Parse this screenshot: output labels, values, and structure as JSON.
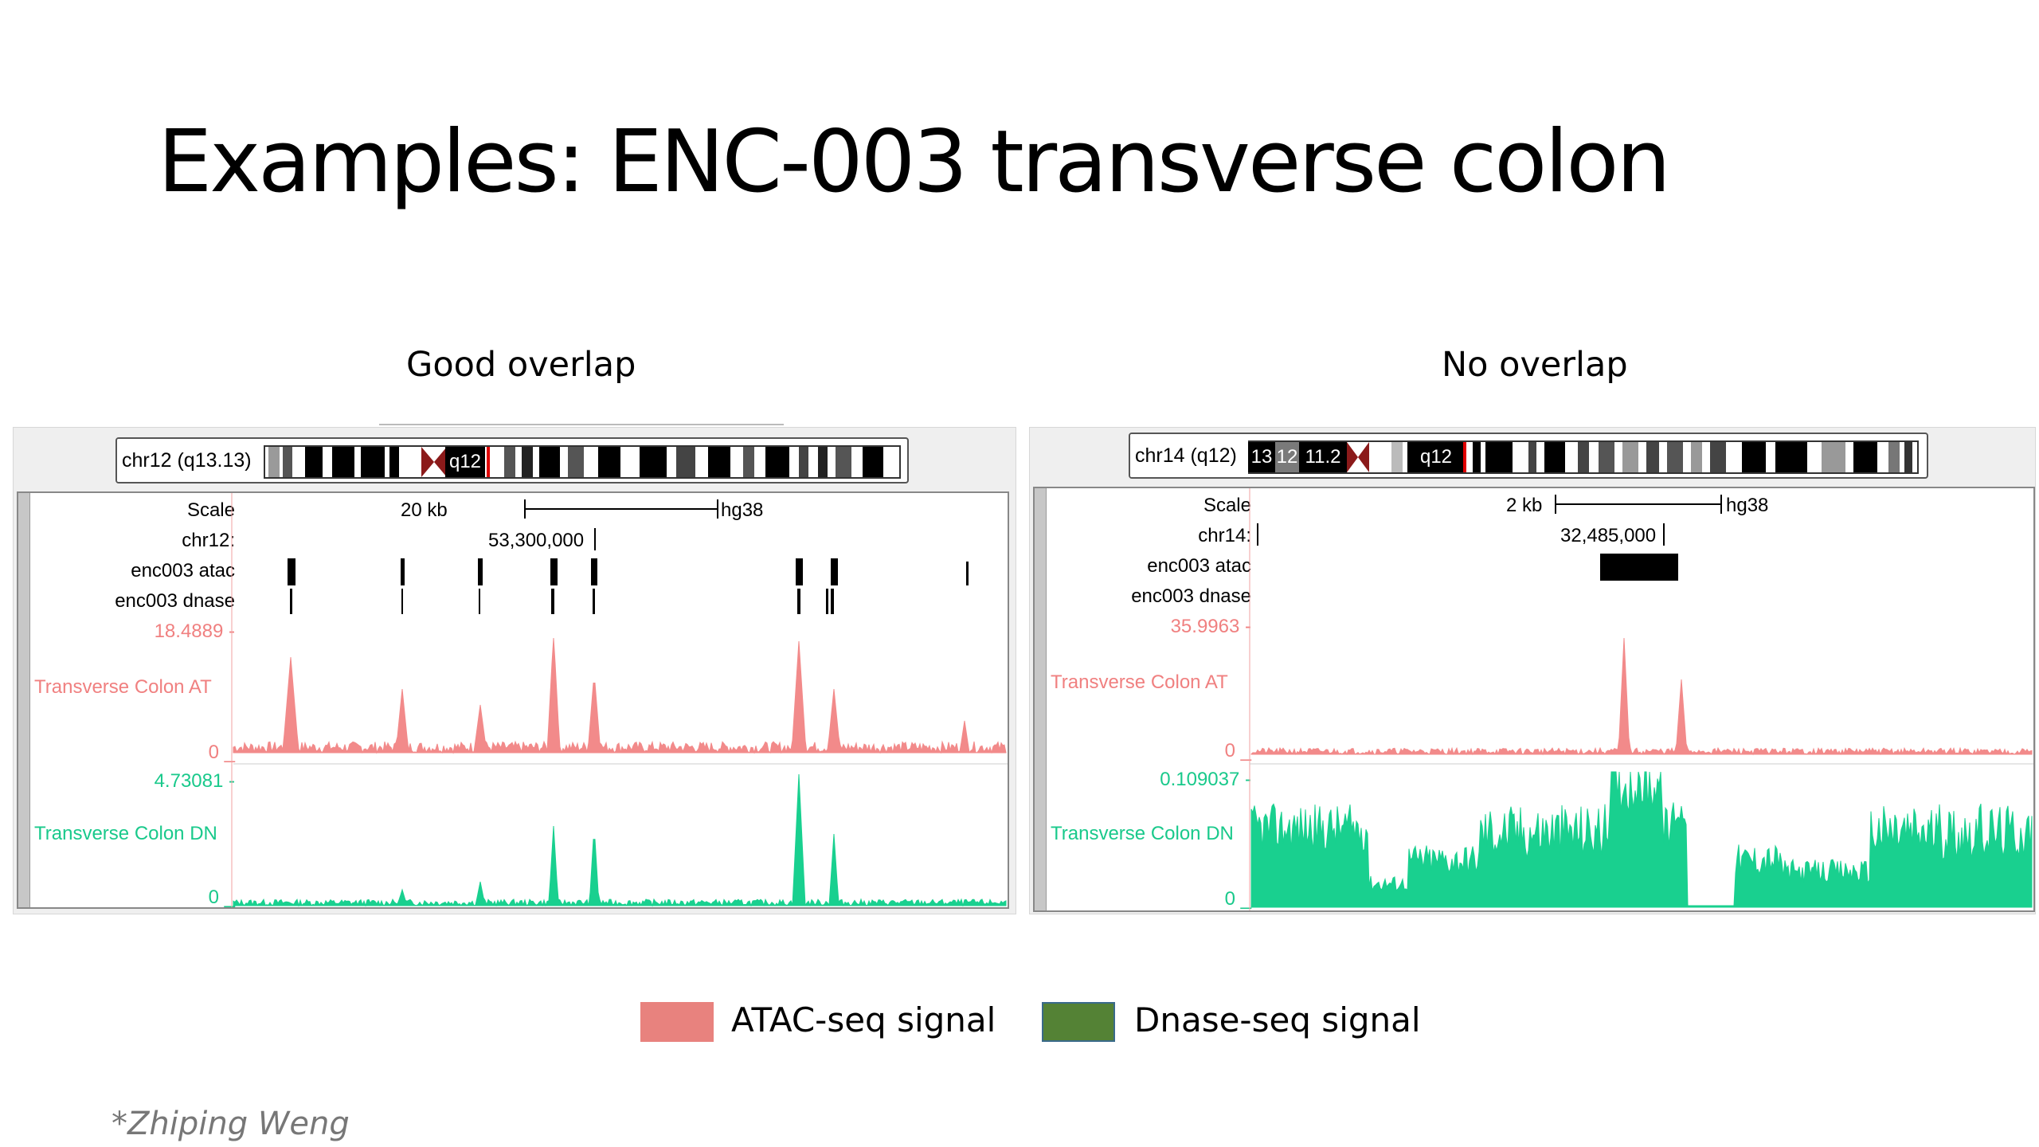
{
  "slide": {
    "title": "Examples: ENC-003 transverse colon",
    "credit": "*Zhiping Weng"
  },
  "panels": [
    {
      "caption": "Good overlap",
      "ideogram": {
        "label": "chr12 (q13.13)",
        "band_q": "q12"
      },
      "tracks": {
        "scale_label": "Scale",
        "scale_text": "20 kb",
        "assembly": "hg38",
        "chrom_label": "chr12:",
        "position": "53,300,000",
        "atac_peaks_label": "enc003 atac",
        "dnase_peaks_label": "enc003 dnase",
        "atac_signal_label": "Transverse Colon AT",
        "atac_max": "18.4889 -",
        "atac_min": "0 _",
        "dnase_signal_label": "Transverse Colon DN",
        "dnase_max": "4.73081 -",
        "dnase_min": "0 _"
      }
    },
    {
      "caption": "No overlap",
      "ideogram": {
        "label": "chr14 (q12)",
        "band_13": "13",
        "band_12": "12",
        "band_11": "11.2",
        "band_q": "q12"
      },
      "tracks": {
        "scale_label": "Scale",
        "scale_text": "2 kb",
        "assembly": "hg38",
        "chrom_label": "chr14:",
        "position": "32,485,000",
        "atac_peaks_label": "enc003 atac",
        "dnase_peaks_label": "enc003 dnase",
        "atac_signal_label": "Transverse Colon AT",
        "atac_max": "35.9963 -",
        "atac_min": "0 _",
        "dnase_signal_label": "Transverse Colon DN",
        "dnase_max": "0.109037 -",
        "dnase_min": "0 _"
      }
    }
  ],
  "legend": [
    {
      "label": "ATAC-seq signal",
      "color": "#e8827e"
    },
    {
      "label": "Dnase-seq signal",
      "color": "#548235"
    }
  ],
  "colors": {
    "atac_signal": "#f28a8a",
    "dnase_signal": "#19d08f",
    "ideogram_centromere": "#8b1a1a",
    "position_marker": "#e00000"
  }
}
